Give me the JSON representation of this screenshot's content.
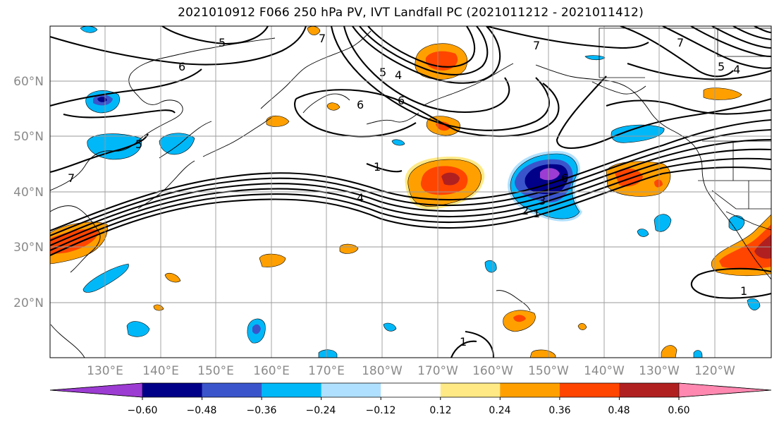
{
  "title": "2021010912 F066 250 hPa PV, IVT Landfall PC (2021011212 - 2021011412)",
  "map": {
    "lat_labels": [
      "60°N",
      "50°N",
      "40°N",
      "30°N",
      "20°N"
    ],
    "lon_labels": [
      "130°E",
      "140°E",
      "150°E",
      "160°E",
      "170°E",
      "180°W",
      "170°W",
      "160°W",
      "150°W",
      "140°W",
      "130°W",
      "120°W"
    ],
    "contour_labels": [
      "5",
      "6",
      "7",
      "7",
      "5",
      "4",
      "6",
      "6",
      "7",
      "5",
      "5",
      "4",
      "1",
      "4",
      "6",
      "3",
      "2",
      "1",
      "7",
      "1",
      "1"
    ],
    "colors": {
      "neg_060": "#9c3cd2",
      "neg_048": "#000088",
      "neg_036": "#3a55cc",
      "neg_024": "#00b8f8",
      "neg_012": "#b0e0ff",
      "pos_012": "#ffe985",
      "pos_024": "#ffa000",
      "pos_036": "#ff4500",
      "pos_048": "#b02020",
      "pos_060": "#ff88b0"
    }
  },
  "colorbar": {
    "ticks": [
      "−0.60",
      "−0.48",
      "−0.36",
      "−0.24",
      "−0.12",
      "0.12",
      "0.24",
      "0.36",
      "0.48",
      "0.60"
    ],
    "colors": [
      "#9c3cd2",
      "#000088",
      "#3a55cc",
      "#00b8f8",
      "#b0e0ff",
      "#ffffff",
      "#ffe985",
      "#ffa000",
      "#ff4500",
      "#b02020",
      "#ff88b0"
    ]
  }
}
